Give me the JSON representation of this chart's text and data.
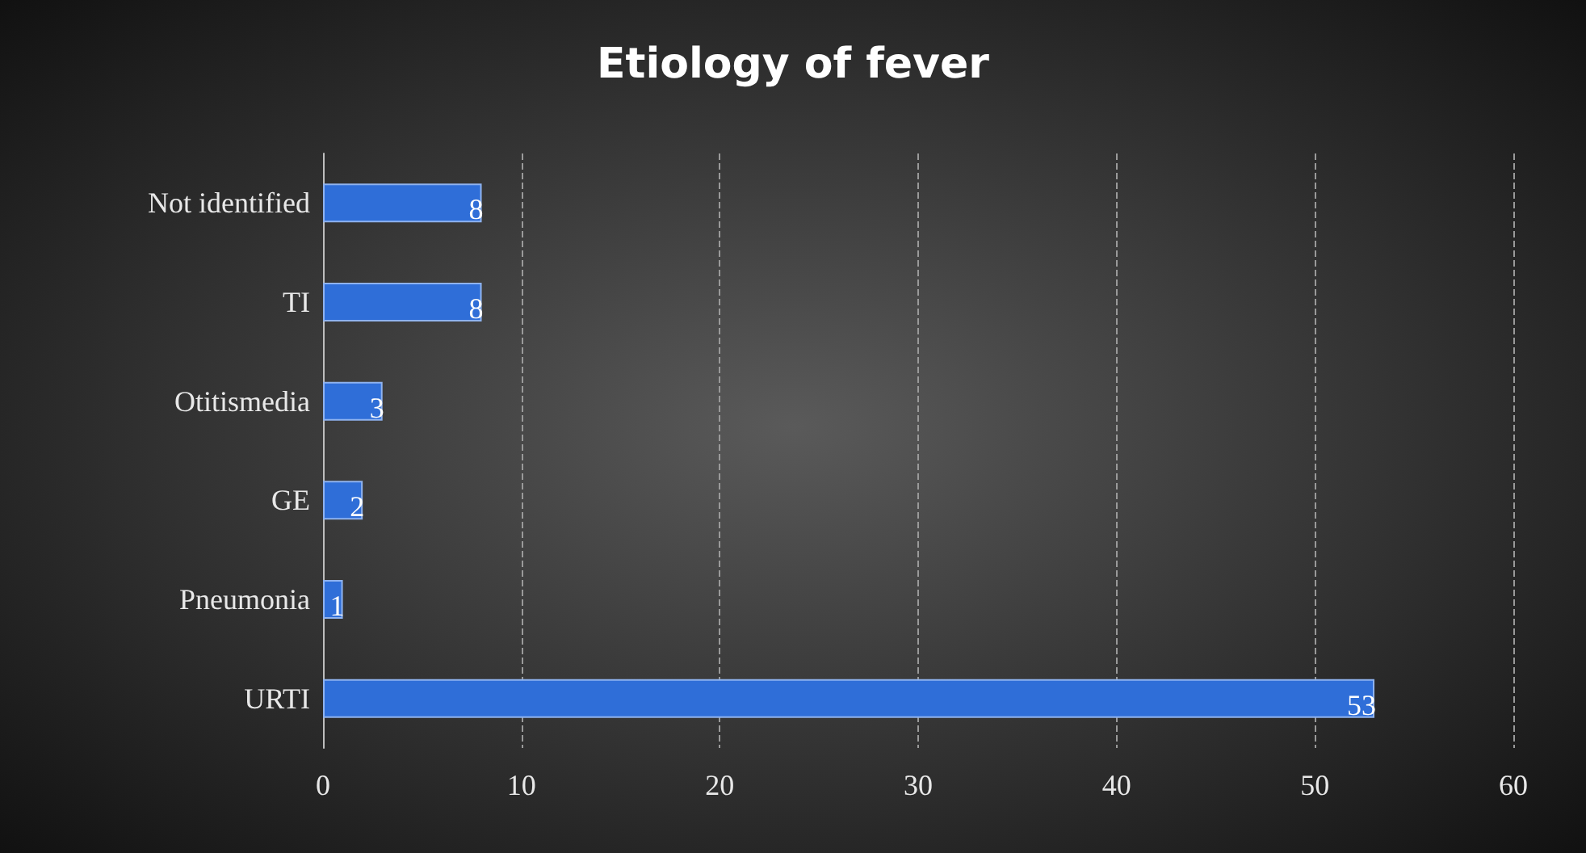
{
  "chart_data": {
    "type": "bar",
    "orientation": "horizontal",
    "title": "Etiology of fever",
    "categories": [
      "Not identified",
      "TI",
      "Otitismedia",
      "GE",
      "Pneumonia",
      "URTI"
    ],
    "values": [
      8,
      8,
      3,
      2,
      1,
      53
    ],
    "color": "#2f6ed8",
    "xlim": [
      0,
      60
    ],
    "xticks": [
      0,
      10,
      20,
      30,
      40,
      50,
      60
    ],
    "grid": "x",
    "data_labels": true
  }
}
